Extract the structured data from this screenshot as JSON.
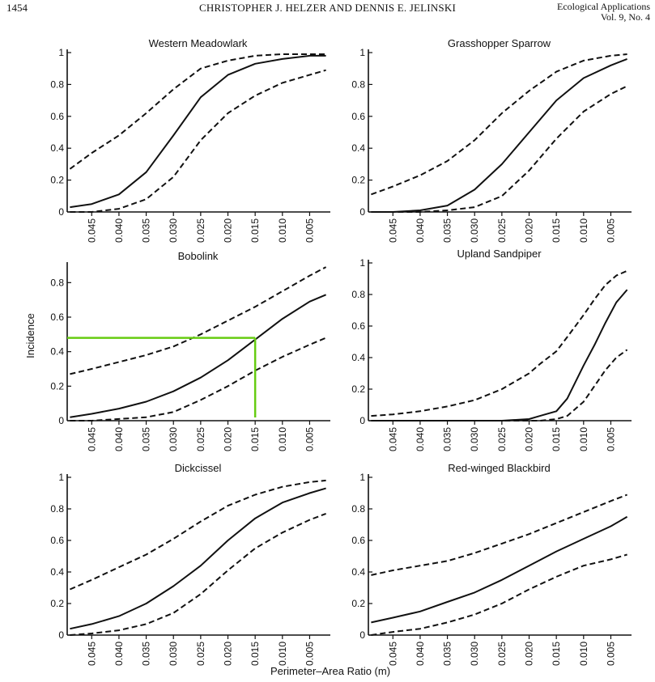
{
  "header": {
    "page_number": "1454",
    "authors": "CHRISTOPHER J. HELZER AND DENNIS E. JELINSKI",
    "journal_line1": "Ecological Applications",
    "journal_line2": "Vol. 9, No. 4"
  },
  "shared": {
    "ylabel": "Incidence",
    "xlabel": "Perimeter–Area Ratio (m)",
    "x_ticks": [
      "0.045",
      "0.040",
      "0.035",
      "0.030",
      "0.025",
      "0.020",
      "0.015",
      "0.010",
      "0.005"
    ],
    "x_tick_values": [
      0.045,
      0.04,
      0.035,
      0.03,
      0.025,
      0.02,
      0.015,
      0.01,
      0.005
    ],
    "xlim": [
      0.0495,
      0.0015
    ],
    "colors": {
      "line": "#111111",
      "highlight": "#66cc11"
    }
  },
  "chart_data": [
    {
      "type": "line",
      "title": "Western Meadowlark",
      "ylim": [
        0,
        1
      ],
      "y_ticks": [
        "0",
        "0.2",
        "0.4",
        "0.6",
        "0.8",
        "1"
      ],
      "y_tick_values": [
        0,
        0.2,
        0.4,
        0.6,
        0.8,
        1
      ],
      "x": [
        0.049,
        0.045,
        0.04,
        0.035,
        0.03,
        0.025,
        0.02,
        0.015,
        0.01,
        0.005,
        0.002
      ],
      "series": [
        {
          "style": "solid",
          "values": [
            0.03,
            0.05,
            0.11,
            0.25,
            0.48,
            0.72,
            0.86,
            0.93,
            0.96,
            0.98,
            0.98
          ]
        },
        {
          "style": "dashed",
          "values": [
            0.27,
            0.37,
            0.48,
            0.62,
            0.77,
            0.9,
            0.95,
            0.98,
            0.99,
            0.99,
            0.99
          ]
        },
        {
          "style": "dashed",
          "values": [
            0.0,
            0.0,
            0.02,
            0.08,
            0.22,
            0.45,
            0.62,
            0.73,
            0.81,
            0.86,
            0.89
          ]
        }
      ]
    },
    {
      "type": "line",
      "title": "Grasshopper Sparrow",
      "ylim": [
        0,
        1
      ],
      "y_ticks": [
        "0",
        "0.2",
        "0.4",
        "0.6",
        "0.8",
        "1"
      ],
      "y_tick_values": [
        0,
        0.2,
        0.4,
        0.6,
        0.8,
        1
      ],
      "x": [
        0.049,
        0.045,
        0.04,
        0.035,
        0.03,
        0.025,
        0.02,
        0.015,
        0.01,
        0.005,
        0.002
      ],
      "series": [
        {
          "style": "solid",
          "values": [
            0.0,
            0.0,
            0.01,
            0.04,
            0.14,
            0.3,
            0.5,
            0.7,
            0.84,
            0.92,
            0.96
          ]
        },
        {
          "style": "dashed",
          "values": [
            0.11,
            0.16,
            0.23,
            0.32,
            0.45,
            0.62,
            0.76,
            0.88,
            0.95,
            0.98,
            0.99
          ]
        },
        {
          "style": "dashed",
          "values": [
            0.0,
            0.0,
            0.0,
            0.01,
            0.03,
            0.1,
            0.26,
            0.46,
            0.63,
            0.74,
            0.79
          ]
        }
      ]
    },
    {
      "type": "line",
      "title": "Bobolink",
      "ylim": [
        0,
        0.9
      ],
      "y_ticks": [
        "0",
        "0.2",
        "0.4",
        "0.6",
        "0.8"
      ],
      "y_tick_values": [
        0,
        0.2,
        0.4,
        0.6,
        0.8
      ],
      "x": [
        0.049,
        0.045,
        0.04,
        0.035,
        0.03,
        0.025,
        0.02,
        0.015,
        0.01,
        0.005,
        0.002
      ],
      "series": [
        {
          "style": "solid",
          "values": [
            0.02,
            0.04,
            0.07,
            0.11,
            0.17,
            0.25,
            0.35,
            0.47,
            0.59,
            0.69,
            0.73
          ]
        },
        {
          "style": "dashed",
          "values": [
            0.27,
            0.3,
            0.34,
            0.38,
            0.43,
            0.5,
            0.58,
            0.66,
            0.75,
            0.84,
            0.89
          ]
        },
        {
          "style": "dashed",
          "values": [
            0.0,
            0.0,
            0.01,
            0.02,
            0.05,
            0.12,
            0.2,
            0.29,
            0.37,
            0.44,
            0.48
          ]
        }
      ],
      "annotation": {
        "x": 0.015,
        "y": 0.48
      }
    },
    {
      "type": "line",
      "title": "Upland Sandpiper",
      "ylim": [
        0,
        1
      ],
      "y_ticks": [
        "0",
        "0.2",
        "0.4",
        "0.6",
        "0.8",
        "1"
      ],
      "y_tick_values": [
        0,
        0.2,
        0.4,
        0.6,
        0.8,
        1
      ],
      "x": [
        0.049,
        0.045,
        0.04,
        0.035,
        0.03,
        0.025,
        0.02,
        0.018,
        0.015,
        0.013,
        0.01,
        0.008,
        0.006,
        0.004,
        0.002
      ],
      "series": [
        {
          "style": "solid",
          "values": [
            0.0,
            0.0,
            0.0,
            0.0,
            0.0,
            0.0,
            0.01,
            0.03,
            0.06,
            0.14,
            0.35,
            0.48,
            0.62,
            0.75,
            0.83
          ]
        },
        {
          "style": "dashed",
          "values": [
            0.03,
            0.04,
            0.06,
            0.09,
            0.13,
            0.2,
            0.3,
            0.36,
            0.44,
            0.53,
            0.67,
            0.77,
            0.86,
            0.92,
            0.95
          ]
        },
        {
          "style": "dashed",
          "values": [
            0.0,
            0.0,
            0.0,
            0.0,
            0.0,
            0.0,
            0.0,
            0.0,
            0.01,
            0.03,
            0.12,
            0.22,
            0.32,
            0.4,
            0.45
          ]
        }
      ]
    },
    {
      "type": "line",
      "title": "Dickcissel",
      "ylim": [
        0,
        1
      ],
      "y_ticks": [
        "0",
        "0.2",
        "0.4",
        "0.6",
        "0.8",
        "1"
      ],
      "y_tick_values": [
        0,
        0.2,
        0.4,
        0.6,
        0.8,
        1
      ],
      "x": [
        0.049,
        0.045,
        0.04,
        0.035,
        0.03,
        0.025,
        0.02,
        0.015,
        0.01,
        0.005,
        0.002
      ],
      "series": [
        {
          "style": "solid",
          "values": [
            0.04,
            0.07,
            0.12,
            0.2,
            0.31,
            0.44,
            0.6,
            0.74,
            0.84,
            0.9,
            0.93
          ]
        },
        {
          "style": "dashed",
          "values": [
            0.29,
            0.35,
            0.43,
            0.51,
            0.61,
            0.72,
            0.82,
            0.89,
            0.94,
            0.97,
            0.98
          ]
        },
        {
          "style": "dashed",
          "values": [
            0.0,
            0.01,
            0.03,
            0.07,
            0.14,
            0.26,
            0.41,
            0.55,
            0.65,
            0.73,
            0.77
          ]
        }
      ]
    },
    {
      "type": "line",
      "title": "Red-winged Blackbird",
      "ylim": [
        0,
        1
      ],
      "y_ticks": [
        "0",
        "0.2",
        "0.4",
        "0.6",
        "0.8",
        "1"
      ],
      "y_tick_values": [
        0,
        0.2,
        0.4,
        0.6,
        0.8,
        1
      ],
      "x": [
        0.049,
        0.045,
        0.04,
        0.035,
        0.03,
        0.025,
        0.02,
        0.015,
        0.01,
        0.005,
        0.002
      ],
      "series": [
        {
          "style": "solid",
          "values": [
            0.08,
            0.11,
            0.15,
            0.21,
            0.27,
            0.35,
            0.44,
            0.53,
            0.61,
            0.69,
            0.75
          ]
        },
        {
          "style": "dashed",
          "values": [
            0.38,
            0.41,
            0.44,
            0.47,
            0.52,
            0.58,
            0.64,
            0.71,
            0.78,
            0.85,
            0.89
          ]
        },
        {
          "style": "dashed",
          "values": [
            0.0,
            0.02,
            0.04,
            0.08,
            0.13,
            0.2,
            0.29,
            0.37,
            0.44,
            0.48,
            0.51
          ]
        }
      ]
    }
  ]
}
